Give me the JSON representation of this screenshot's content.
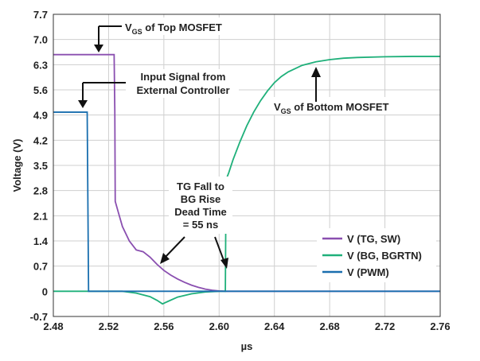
{
  "chart_data": {
    "type": "line",
    "xlabel": "µs",
    "ylabel": "Voltage (V)",
    "xlim": [
      2.48,
      2.76
    ],
    "ylim": [
      -0.7,
      7.7
    ],
    "x_ticks": [
      "2.48",
      "2.52",
      "2.56",
      "2.60",
      "2.64",
      "2.68",
      "2.72",
      "2.76"
    ],
    "y_ticks": [
      "-0.7",
      "0",
      "0.7",
      "1.4",
      "2.1",
      "2.8",
      "3.5",
      "4.2",
      "4.9",
      "5.6",
      "6.3",
      "7.0",
      "7.7"
    ],
    "grid": true,
    "legend_position": "right",
    "series": [
      {
        "name": "V (TG, SW)",
        "color": "#8a4fb0",
        "points": [
          [
            2.48,
            6.58
          ],
          [
            2.524,
            6.58
          ],
          [
            2.5245,
            5.0
          ],
          [
            2.5248,
            2.5
          ],
          [
            2.527,
            2.2
          ],
          [
            2.53,
            1.8
          ],
          [
            2.535,
            1.4
          ],
          [
            2.54,
            1.15
          ],
          [
            2.545,
            1.1
          ],
          [
            2.55,
            0.95
          ],
          [
            2.555,
            0.75
          ],
          [
            2.56,
            0.58
          ],
          [
            2.565,
            0.45
          ],
          [
            2.57,
            0.34
          ],
          [
            2.575,
            0.25
          ],
          [
            2.58,
            0.17
          ],
          [
            2.585,
            0.11
          ],
          [
            2.59,
            0.06
          ],
          [
            2.595,
            0.03
          ],
          [
            2.6,
            0.01
          ],
          [
            2.605,
            0.0
          ],
          [
            2.76,
            0.0
          ]
        ]
      },
      {
        "name": "V (BG, BGRTN)",
        "color": "#1fb07a",
        "points": [
          [
            2.48,
            0.0
          ],
          [
            2.53,
            0.0
          ],
          [
            2.54,
            -0.05
          ],
          [
            2.55,
            -0.15
          ],
          [
            2.555,
            -0.25
          ],
          [
            2.559,
            -0.35
          ],
          [
            2.563,
            -0.28
          ],
          [
            2.57,
            -0.16
          ],
          [
            2.58,
            -0.07
          ],
          [
            2.59,
            -0.02
          ],
          [
            2.6,
            0.0
          ],
          [
            2.6045,
            0.0
          ],
          [
            2.605,
            3.1
          ],
          [
            2.607,
            3.3
          ],
          [
            2.61,
            3.65
          ],
          [
            2.615,
            4.15
          ],
          [
            2.62,
            4.6
          ],
          [
            2.625,
            4.98
          ],
          [
            2.63,
            5.3
          ],
          [
            2.635,
            5.57
          ],
          [
            2.64,
            5.8
          ],
          [
            2.645,
            5.97
          ],
          [
            2.65,
            6.1
          ],
          [
            2.66,
            6.28
          ],
          [
            2.67,
            6.38
          ],
          [
            2.68,
            6.44
          ],
          [
            2.69,
            6.48
          ],
          [
            2.7,
            6.5
          ],
          [
            2.72,
            6.52
          ],
          [
            2.74,
            6.53
          ],
          [
            2.76,
            6.53
          ]
        ]
      },
      {
        "name": "V (PWM)",
        "color": "#1a6faf",
        "points": [
          [
            2.48,
            4.98
          ],
          [
            2.5045,
            4.98
          ],
          [
            2.5055,
            0.0
          ],
          [
            2.76,
            0.0
          ]
        ]
      }
    ],
    "annotations": [
      {
        "id": "top",
        "lines": [
          "V_GS of Top MOSFET"
        ]
      },
      {
        "id": "input",
        "lines": [
          "Input Signal from",
          "External Controller"
        ]
      },
      {
        "id": "bottom",
        "lines": [
          "V_GS of Bottom MOSFET"
        ]
      },
      {
        "id": "dead",
        "lines": [
          "TG Fall to",
          "BG Rise",
          "Dead Time",
          "= 55 ns"
        ]
      }
    ]
  }
}
